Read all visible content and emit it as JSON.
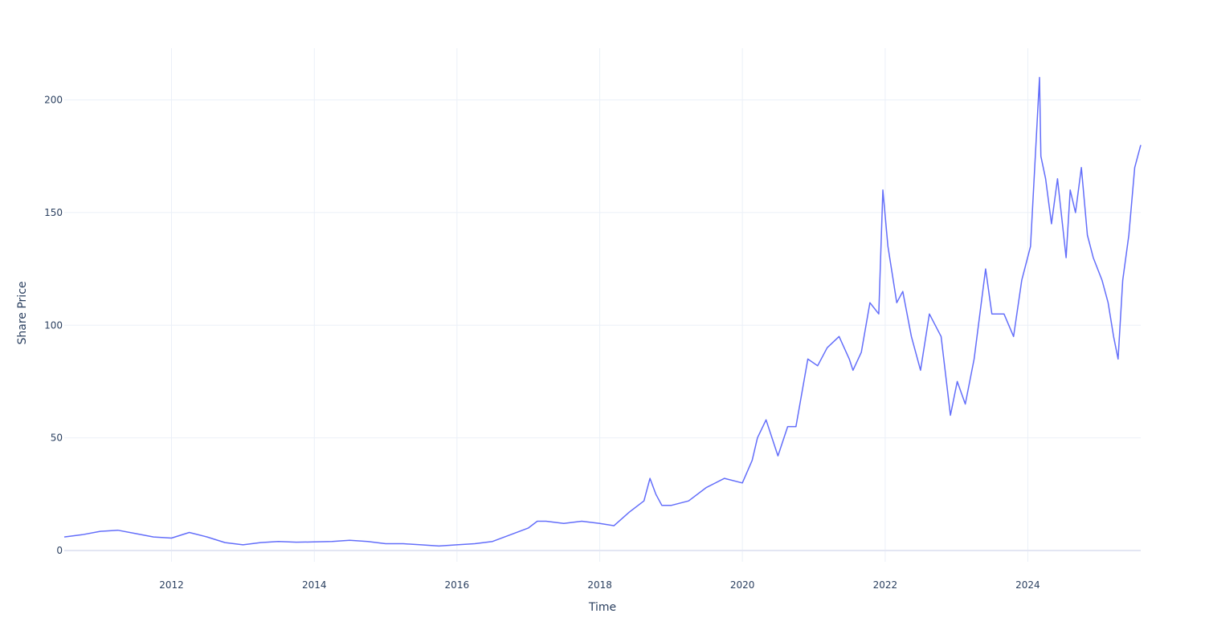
{
  "chart_data": {
    "type": "line",
    "xlabel": "Time",
    "ylabel": "Share Price",
    "xlim": [
      "2010-07-01",
      "2025-08-01"
    ],
    "ylim": [
      -5,
      223
    ],
    "grid": true,
    "legend": "none",
    "x_ticks": [
      {
        "date": "2012-01-01",
        "label": "2012"
      },
      {
        "date": "2014-01-01",
        "label": "2014"
      },
      {
        "date": "2016-01-01",
        "label": "2016"
      },
      {
        "date": "2018-01-01",
        "label": "2018"
      },
      {
        "date": "2020-01-01",
        "label": "2020"
      },
      {
        "date": "2022-01-01",
        "label": "2022"
      },
      {
        "date": "2024-01-01",
        "label": "2024"
      }
    ],
    "y_ticks": [
      {
        "value": 0,
        "label": "0"
      },
      {
        "value": 50,
        "label": "50"
      },
      {
        "value": 100,
        "label": "100"
      },
      {
        "value": 150,
        "label": "150"
      },
      {
        "value": 200,
        "label": "200"
      }
    ],
    "series": [
      {
        "color": "#636efa",
        "x": [
          "2010-07-01",
          "2010-10-01",
          "2011-01-01",
          "2011-04-01",
          "2011-07-01",
          "2011-10-01",
          "2012-01-01",
          "2012-04-01",
          "2012-07-01",
          "2012-10-01",
          "2013-01-01",
          "2013-04-01",
          "2013-07-01",
          "2013-10-01",
          "2014-01-01",
          "2014-04-01",
          "2014-07-01",
          "2014-10-01",
          "2015-01-01",
          "2015-04-01",
          "2015-07-01",
          "2015-10-01",
          "2016-01-01",
          "2016-04-01",
          "2016-07-01",
          "2016-10-01",
          "2017-01-01",
          "2017-02-15",
          "2017-04-01",
          "2017-07-01",
          "2017-10-01",
          "2018-01-01",
          "2018-03-15",
          "2018-06-01",
          "2018-08-15",
          "2018-09-15",
          "2018-10-15",
          "2018-11-15",
          "2019-01-01",
          "2019-04-01",
          "2019-07-01",
          "2019-10-01",
          "2020-01-01",
          "2020-02-20",
          "2020-03-18",
          "2020-05-01",
          "2020-07-01",
          "2020-08-20",
          "2020-10-01",
          "2020-12-01",
          "2021-01-20",
          "2021-03-10",
          "2021-05-10",
          "2021-07-01",
          "2021-07-20",
          "2021-09-01",
          "2021-10-15",
          "2021-11-29",
          "2021-12-20",
          "2022-01-15",
          "2022-03-01",
          "2022-04-01",
          "2022-05-15",
          "2022-07-01",
          "2022-08-15",
          "2022-10-14",
          "2022-12-01",
          "2023-01-05",
          "2023-02-15",
          "2023-04-01",
          "2023-05-30",
          "2023-07-01",
          "2023-09-01",
          "2023-10-20",
          "2023-12-01",
          "2024-01-15",
          "2024-03-01",
          "2024-03-08",
          "2024-04-01",
          "2024-05-01",
          "2024-06-01",
          "2024-07-15",
          "2024-08-05",
          "2024-09-01",
          "2024-10-01",
          "2024-11-01",
          "2024-12-01",
          "2025-01-15",
          "2025-02-15",
          "2025-03-15",
          "2025-04-07",
          "2025-05-01",
          "2025-06-01",
          "2025-07-01",
          "2025-08-01"
        ],
        "y": [
          6,
          7,
          8.5,
          9,
          7.5,
          6,
          5.5,
          8,
          6,
          3.5,
          2.5,
          3.5,
          4,
          3.7,
          3.8,
          4,
          4.5,
          4,
          3,
          3,
          2.5,
          2,
          2.5,
          3,
          4,
          7,
          10,
          13,
          13,
          12,
          13,
          12,
          11,
          17,
          22,
          32,
          25,
          20,
          20,
          22,
          28,
          32,
          30,
          40,
          50,
          58,
          42,
          55,
          55,
          85,
          82,
          90,
          95,
          85,
          80,
          88,
          110,
          105,
          160,
          135,
          110,
          115,
          95,
          80,
          105,
          95,
          60,
          75,
          65,
          85,
          125,
          105,
          105,
          95,
          120,
          135,
          210,
          175,
          165,
          145,
          165,
          130,
          160,
          150,
          170,
          140,
          130,
          120,
          110,
          95,
          85,
          120,
          140,
          170,
          180
        ]
      }
    ]
  }
}
